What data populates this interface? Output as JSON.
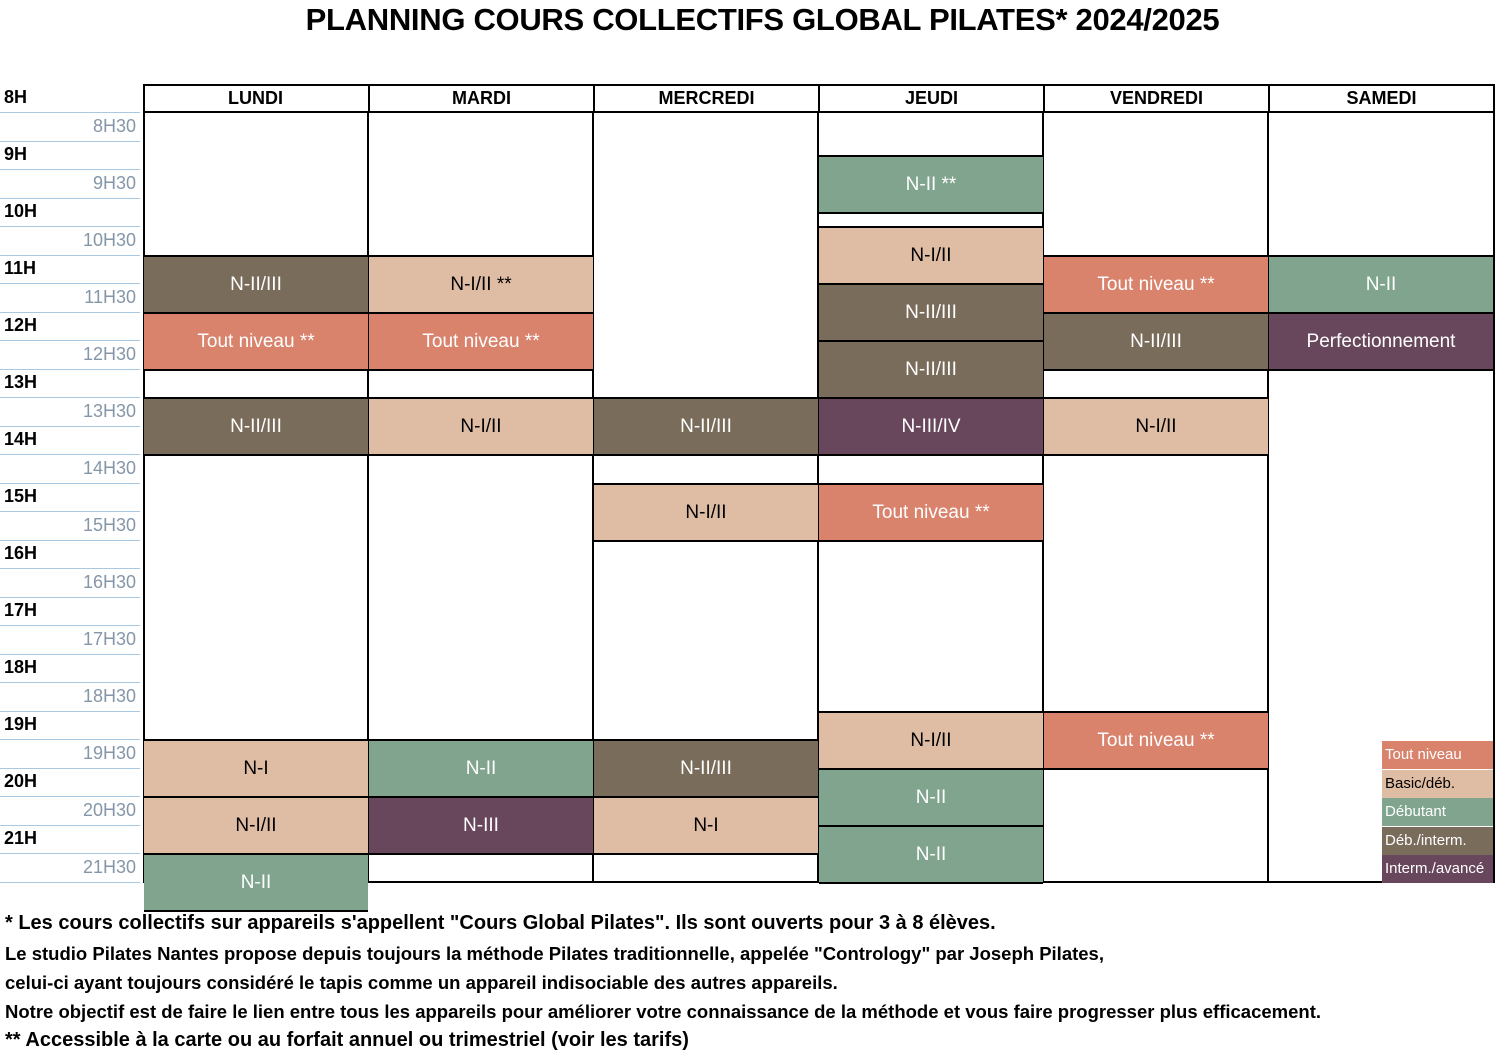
{
  "title": "PLANNING COURS COLLECTIFS GLOBAL PILATES* 2024/2025",
  "corner_label": "8H",
  "days": [
    "LUNDI",
    "MARDI",
    "MERCREDI",
    "JEUDI",
    "VENDREDI",
    "SAMEDI"
  ],
  "times": [
    "8H30",
    "9H",
    "9H30",
    "10H",
    "10H30",
    "11H",
    "11H30",
    "12H",
    "12H30",
    "13H",
    "13H30",
    "14H",
    "14H30",
    "15H",
    "15H30",
    "16H",
    "16H30",
    "17H",
    "17H30",
    "18H",
    "18H30",
    "19H",
    "19H30",
    "20H",
    "20H30",
    "21H",
    "21H30"
  ],
  "colors": {
    "tout": "#d9826c",
    "basic": "#dfbca4",
    "deb": "#80a48e",
    "debint": "#7a6c5b",
    "int": "#68475c"
  },
  "classes": [
    {
      "day": "LUNDI",
      "start": "10H30",
      "end": "11H30",
      "label": "N-II/III",
      "level": "debint"
    },
    {
      "day": "LUNDI",
      "start": "11H30",
      "end": "12H30",
      "label": "Tout niveau **",
      "level": "tout"
    },
    {
      "day": "LUNDI",
      "start": "13H",
      "end": "14H",
      "label": "N-II/III",
      "level": "debint"
    },
    {
      "day": "LUNDI",
      "start": "19H",
      "end": "20H",
      "label": "N-I",
      "level": "basic"
    },
    {
      "day": "LUNDI",
      "start": "20H",
      "end": "21H",
      "label": "N-I/II",
      "level": "basic"
    },
    {
      "day": "LUNDI",
      "start": "21H",
      "end": "22H",
      "label": "N-II",
      "level": "deb"
    },
    {
      "day": "MARDI",
      "start": "10H30",
      "end": "11H30",
      "label": "N-I/II **",
      "level": "basic"
    },
    {
      "day": "MARDI",
      "start": "11H30",
      "end": "12H30",
      "label": "Tout niveau **",
      "level": "tout"
    },
    {
      "day": "MARDI",
      "start": "13H",
      "end": "14H",
      "label": "N-I/II",
      "level": "basic"
    },
    {
      "day": "MARDI",
      "start": "19H",
      "end": "20H",
      "label": "N-II",
      "level": "deb"
    },
    {
      "day": "MARDI",
      "start": "20H",
      "end": "21H",
      "label": "N-III",
      "level": "int"
    },
    {
      "day": "MERCREDI",
      "start": "13H",
      "end": "14H",
      "label": "N-II/III",
      "level": "debint"
    },
    {
      "day": "MERCREDI",
      "start": "14H30",
      "end": "15H30",
      "label": "N-I/II",
      "level": "basic"
    },
    {
      "day": "MERCREDI",
      "start": "19H",
      "end": "20H",
      "label": "N-II/III",
      "level": "debint"
    },
    {
      "day": "MERCREDI",
      "start": "20H",
      "end": "21H",
      "label": "N-I",
      "level": "basic"
    },
    {
      "day": "JEUDI",
      "start": "8H45",
      "end": "9H45",
      "label": "N-II **",
      "level": "deb"
    },
    {
      "day": "JEUDI",
      "start": "10H",
      "end": "11H",
      "label": "N-I/II",
      "level": "basic"
    },
    {
      "day": "JEUDI",
      "start": "11H",
      "end": "12H",
      "label": "N-II/III",
      "level": "debint"
    },
    {
      "day": "JEUDI",
      "start": "12H",
      "end": "13H",
      "label": "N-II/III",
      "level": "debint"
    },
    {
      "day": "JEUDI",
      "start": "13H",
      "end": "14H",
      "label": "N-III/IV",
      "level": "int"
    },
    {
      "day": "JEUDI",
      "start": "14H30",
      "end": "15H30",
      "label": "Tout niveau **",
      "level": "tout"
    },
    {
      "day": "JEUDI",
      "start": "18H30",
      "end": "19H30",
      "label": "N-I/II",
      "level": "basic"
    },
    {
      "day": "JEUDI",
      "start": "19H30",
      "end": "20H30",
      "label": "N-II",
      "level": "deb"
    },
    {
      "day": "JEUDI",
      "start": "20H30",
      "end": "21H30",
      "label": "N-II",
      "level": "deb"
    },
    {
      "day": "VENDREDI",
      "start": "10H30",
      "end": "11H30",
      "label": "Tout niveau **",
      "level": "tout"
    },
    {
      "day": "VENDREDI",
      "start": "11H30",
      "end": "12H30",
      "label": "N-II/III",
      "level": "debint"
    },
    {
      "day": "VENDREDI",
      "start": "13H",
      "end": "14H",
      "label": "N-I/II",
      "level": "basic"
    },
    {
      "day": "VENDREDI",
      "start": "18H30",
      "end": "19H30",
      "label": "Tout niveau **",
      "level": "tout"
    },
    {
      "day": "SAMEDI",
      "start": "10H30",
      "end": "11H30",
      "label": "N-II",
      "level": "deb"
    },
    {
      "day": "SAMEDI",
      "start": "11H30",
      "end": "12H30",
      "label": "Perfectionnement",
      "level": "int"
    }
  ],
  "legend": [
    {
      "label": "Tout niveau",
      "level": "tout"
    },
    {
      "label": "Basic/déb.",
      "level": "basic"
    },
    {
      "label": "Débutant",
      "level": "deb"
    },
    {
      "label": "Déb./interm.",
      "level": "debint"
    },
    {
      "label": "Interm./avancé",
      "level": "int"
    }
  ],
  "footnotes": [
    "* Les cours collectifs sur appareils s'appellent \"Cours Global Pilates\". Ils sont ouverts pour 3 à 8 élèves.",
    "Le studio Pilates Nantes propose depuis toujours la méthode Pilates traditionnelle, appelée \"Contrology\" par Joseph Pilates,",
    "celui-ci ayant toujours considéré le tapis comme un appareil indisociable des autres appareils.",
    "Notre objectif est de faire le lien entre tous les appareils pour améliorer votre connaissance de la méthode et vous faire progresser plus efficacement.",
    "** Accessible à la carte ou au forfait annuel ou trimestriel (voir les tarifs)"
  ]
}
